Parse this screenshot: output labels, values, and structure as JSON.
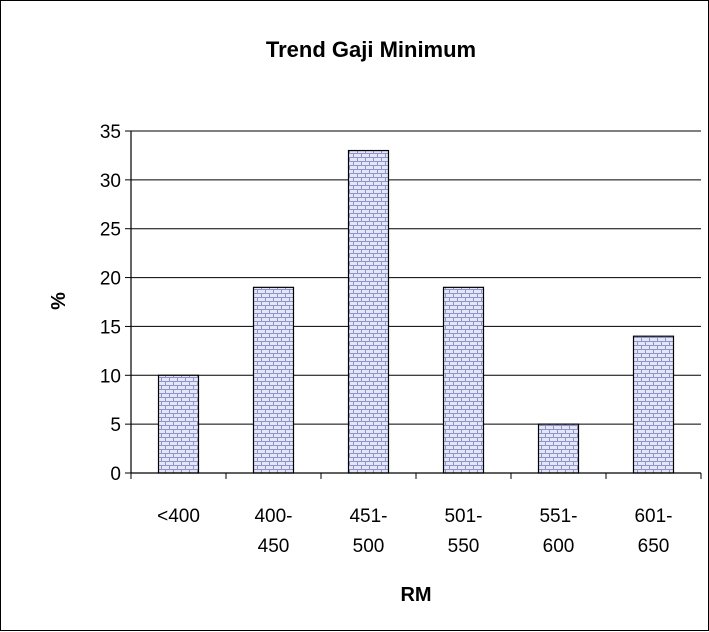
{
  "chart_data": {
    "type": "bar",
    "title": "Trend Gaji Minimum",
    "xlabel": "RM",
    "ylabel": "%",
    "categories": [
      [
        "<400"
      ],
      [
        "400-",
        "450"
      ],
      [
        "451-",
        "500"
      ],
      [
        "501-",
        "550"
      ],
      [
        "551-",
        "600"
      ],
      [
        "601-",
        "650"
      ]
    ],
    "values": [
      10,
      19,
      33,
      19,
      5,
      14
    ],
    "ylim": [
      0,
      35
    ],
    "yticks": [
      0,
      5,
      10,
      15,
      20,
      25,
      30,
      35
    ],
    "grid": true,
    "legend": "none",
    "bar_fill": "#e4e6f6",
    "bar_pattern_line": "#8f95cc",
    "bar_stroke": "#000000"
  }
}
